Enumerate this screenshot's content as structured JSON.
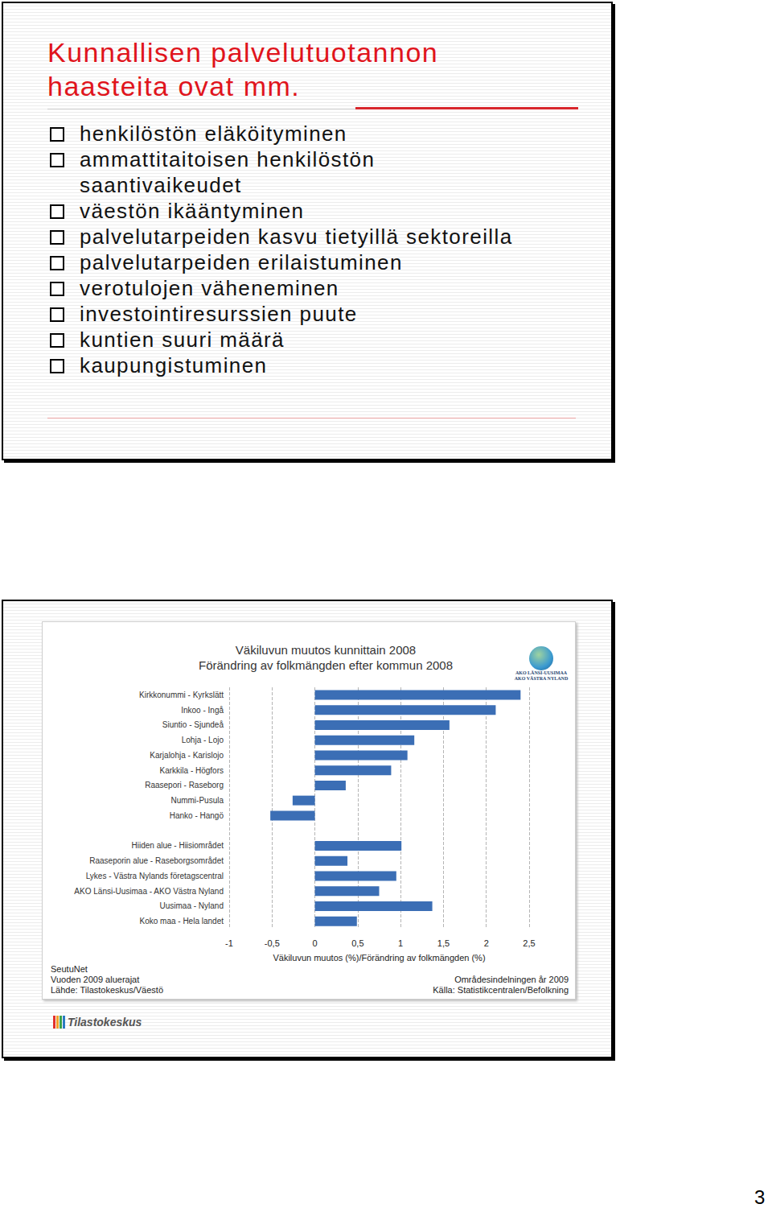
{
  "slide_1": {
    "title": [
      "Kunnallisen palvelutuotannon",
      "haasteita ovat mm."
    ],
    "bullets": [
      [
        "henkilöstön eläköityminen"
      ],
      [
        "ammattitaitoisen henkilöstön",
        "saantivaikeudet"
      ],
      [
        "väestön ikääntyminen"
      ],
      [
        "palvelutarpeiden kasvu tietyillä sektoreilla"
      ],
      [
        "palvelutarpeiden erilaistuminen"
      ],
      [
        "verotulojen väheneminen"
      ],
      [
        "investointiresurssien puute"
      ],
      [
        "kuntien suuri määrä"
      ],
      [
        "kaupungistuminen"
      ]
    ]
  },
  "chart_data": {
    "type": "bar",
    "orientation": "horizontal",
    "title": "Väkiluvun muutos kunnittain 2008",
    "subtitle": "Förändring av folkmängden efter kommun 2008",
    "x_label": "Väkiluvun muutos (%)/Förändring av folkmängden (%)",
    "categories": [
      "Kirkkonummi - Kyrkslätt",
      "Inkoo - Ingå",
      "Siuntio - Sjundeå",
      "Lohja - Lojo",
      "Karjalohja - Karislojo",
      "Karkkila - Högfors",
      "Raasepori - Raseborg",
      "Nummi-Pusula",
      "Hanko - Hangö",
      null,
      "Hiiden alue - Hiisiområdet",
      "Raaseporin alue - Raseborgsområdet",
      "Lykes - Västra Nylands företagscentral",
      "AKO Länsi-Uusimaa - AKO Västra Nyland",
      "Uusimaa - Nyland",
      "Koko maa - Hela landet"
    ],
    "values": [
      2.4,
      2.11,
      1.57,
      1.16,
      1.08,
      0.89,
      0.36,
      -0.26,
      -0.52,
      null,
      1.01,
      0.38,
      0.95,
      0.75,
      1.37,
      0.49
    ],
    "color": "#3b6eb5",
    "xlim": [
      -1,
      2.5
    ],
    "xticks": [
      -1,
      {
        "value": -0.5,
        "label": "-0,5"
      },
      0,
      {
        "value": 0.5,
        "label": "0,5"
      },
      1,
      {
        "value": 1.5,
        "label": "1,5"
      },
      2,
      {
        "value": 2.5,
        "label": "2,5"
      }
    ],
    "grid": true
  },
  "chart_notes": {
    "left": [
      "SeutuNet",
      "Vuoden 2009 aluerajat",
      "Lähde: Tilastokeskus/Väestö"
    ],
    "right": [
      "Områdesindelningen år 2009",
      "Källa: Statistikcentralen/Befolkning"
    ]
  },
  "logos": {
    "region": [
      "AKO LÄNSI-UUSIMAA",
      "AKO VÄSTRA NYLAND"
    ],
    "statistics": "Tilastokeskus"
  },
  "page_number": "3"
}
